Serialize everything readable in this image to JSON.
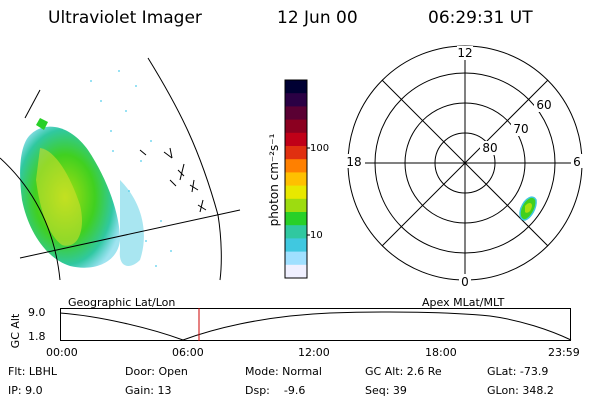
{
  "header": {
    "instrument": "Ultraviolet Imager",
    "date": "12 Jun 00",
    "time": "06:29:31 UT"
  },
  "geo_panel": {
    "label": "Geographic Lat/Lon"
  },
  "colorbar": {
    "unit_label": "photon cm⁻²s⁻¹",
    "ticks": [
      "100",
      "10"
    ],
    "colors": [
      "#000033",
      "#2a0044",
      "#5a0033",
      "#8b0020",
      "#c00018",
      "#e03010",
      "#ff8000",
      "#ffc000",
      "#e8e800",
      "#9ddc10",
      "#28d028",
      "#30c8a0",
      "#40c8e0",
      "#a0e0ff",
      "#f0f0ff"
    ]
  },
  "polar_panel": {
    "label": "Apex MLat/MLT",
    "mlt_labels": {
      "top": "12",
      "bottom": "0",
      "left": "18",
      "right": "6"
    },
    "lat_labels": [
      "60",
      "70",
      "80"
    ]
  },
  "altitude_strip": {
    "ylabel": "GC Alt",
    "yticks": [
      "9.0",
      "1.8"
    ],
    "xticks": [
      "00:00",
      "06:00",
      "12:00",
      "18:00",
      "23:59"
    ],
    "marker_time": "06:29:31",
    "marker_color": "#cc0000"
  },
  "status": {
    "filter": "Flt: LBHL",
    "ip": "IP:  9.0",
    "door": "Door: Open",
    "gain": "Gain: 13",
    "mode": "Mode: Normal",
    "dsp": "Dsp:    -9.6",
    "gc_alt": "GC Alt: 2.6 Re",
    "seq": "Seq: 39",
    "glat": "GLat: -73.9",
    "glon": "GLon: 348.2"
  }
}
